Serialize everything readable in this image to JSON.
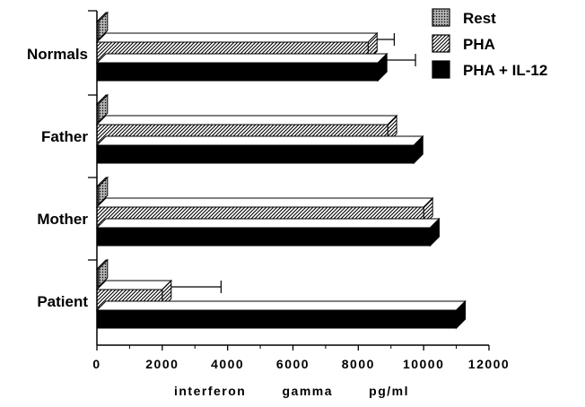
{
  "chart_data": {
    "type": "bar",
    "orientation": "horizontal",
    "style": "3d",
    "categories": [
      "Normals",
      "Father",
      "Mother",
      "Patient"
    ],
    "series": [
      {
        "name": "Rest",
        "values": [
          50,
          50,
          50,
          50
        ],
        "error": [
          0,
          0,
          0,
          0
        ],
        "pattern": "dotted-gray"
      },
      {
        "name": "PHA",
        "values": [
          8300,
          8900,
          10000,
          2000
        ],
        "error": [
          800,
          0,
          0,
          1800
        ],
        "pattern": "hatched"
      },
      {
        "name": "PHA + IL-12",
        "values": [
          8600,
          9700,
          10200,
          11000
        ],
        "error": [
          1150,
          0,
          0,
          0
        ],
        "pattern": "solid-black"
      }
    ],
    "xlabel": "interferon   gamma   pg/ml",
    "xlim": [
      0,
      12000
    ],
    "xticks": [
      0,
      2000,
      4000,
      6000,
      8000,
      10000,
      12000
    ],
    "xtick_labels": [
      "0",
      "2000",
      "4000",
      "6000",
      "8000",
      "10000",
      "12000"
    ],
    "grid": false,
    "legend_position": "top-right"
  }
}
